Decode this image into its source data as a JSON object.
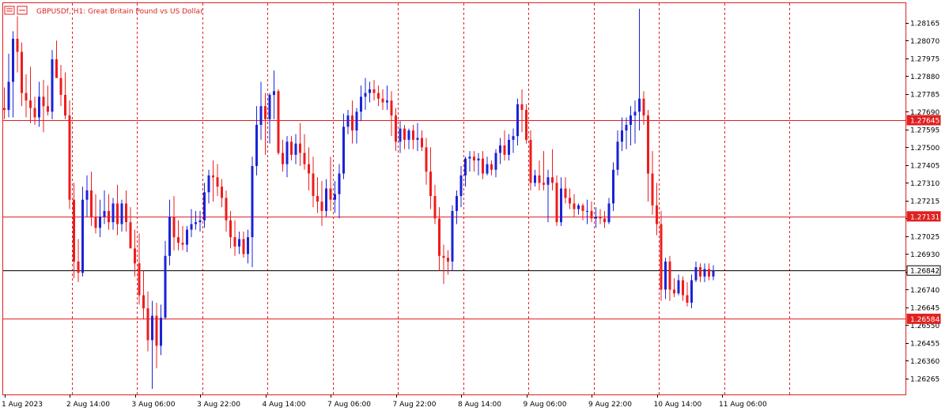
{
  "header": {
    "symbol_text": "GBPUSDf, H1:  Great Britain Pound vs US Dollar"
  },
  "colors": {
    "frame": "#e02020",
    "grid": "#e02020",
    "bull": "#1a23d6",
    "bear": "#ee1c1c",
    "hline": "#e02020",
    "current_line": "#000000",
    "axis_text": "#000000",
    "background": "#ffffff"
  },
  "chart_data": {
    "type": "candlestick",
    "symbol": "GBPUSDf",
    "timeframe": "H1",
    "ylim": [
      1.2618,
      1.2827
    ],
    "y_ticks": [
      "1.28165",
      "1.28070",
      "1.27975",
      "1.27880",
      "1.27785",
      "1.27690",
      "1.27595",
      "1.27500",
      "1.27405",
      "1.27310",
      "1.27215",
      "1.27120",
      "1.27025",
      "1.26930",
      "1.26835",
      "1.26740",
      "1.26645",
      "1.26550",
      "1.26455",
      "1.26360",
      "1.26265"
    ],
    "x_labels": [
      {
        "label": "1 Aug 2023",
        "bar": 0
      },
      {
        "label": "2 Aug 14:00",
        "bar": 15
      },
      {
        "label": "3 Aug 06:00",
        "bar": 30
      },
      {
        "label": "3 Aug 22:00",
        "bar": 45
      },
      {
        "label": "4 Aug 14:00",
        "bar": 60
      },
      {
        "label": "7 Aug 06:00",
        "bar": 75
      },
      {
        "label": "7 Aug 22:00",
        "bar": 90
      },
      {
        "label": "8 Aug 14:00",
        "bar": 105
      },
      {
        "label": "9 Aug 06:00",
        "bar": 120
      },
      {
        "label": "9 Aug 22:00",
        "bar": 135
      },
      {
        "label": "10 Aug 14:00",
        "bar": 150
      },
      {
        "label": "11 Aug 06:00",
        "bar": 165
      }
    ],
    "grid_bars": [
      15,
      30,
      45,
      60,
      75,
      90,
      105,
      120,
      135,
      150,
      165,
      180
    ],
    "horizontal_lines": [
      {
        "price": 1.27645,
        "label": "1.27645",
        "kind": "level"
      },
      {
        "price": 1.27131,
        "label": "1.27131",
        "kind": "level"
      },
      {
        "price": 1.26842,
        "label": "1.26842",
        "kind": "current"
      },
      {
        "price": 1.26584,
        "label": "1.26584",
        "kind": "level"
      }
    ],
    "candles": [
      {
        "o": 1.2771,
        "h": 1.2782,
        "l": 1.2765,
        "c": 1.277
      },
      {
        "o": 1.277,
        "h": 1.28,
        "l": 1.2766,
        "c": 1.2785
      },
      {
        "o": 1.2785,
        "h": 1.2812,
        "l": 1.2766,
        "c": 1.2808
      },
      {
        "o": 1.2808,
        "h": 1.282,
        "l": 1.279,
        "c": 1.2801
      },
      {
        "o": 1.2801,
        "h": 1.2806,
        "l": 1.2772,
        "c": 1.2779
      },
      {
        "o": 1.2779,
        "h": 1.2789,
        "l": 1.2766,
        "c": 1.2775
      },
      {
        "o": 1.2775,
        "h": 1.2793,
        "l": 1.2763,
        "c": 1.2771
      },
      {
        "o": 1.2771,
        "h": 1.2777,
        "l": 1.2762,
        "c": 1.2766
      },
      {
        "o": 1.2766,
        "h": 1.2785,
        "l": 1.2761,
        "c": 1.2777
      },
      {
        "o": 1.2777,
        "h": 1.2786,
        "l": 1.2758,
        "c": 1.2772
      },
      {
        "o": 1.2772,
        "h": 1.2783,
        "l": 1.2767,
        "c": 1.2769
      },
      {
        "o": 1.2769,
        "h": 1.2802,
        "l": 1.2765,
        "c": 1.2797
      },
      {
        "o": 1.2797,
        "h": 1.2807,
        "l": 1.2788,
        "c": 1.2787
      },
      {
        "o": 1.2787,
        "h": 1.2794,
        "l": 1.2772,
        "c": 1.2778
      },
      {
        "o": 1.2778,
        "h": 1.279,
        "l": 1.2765,
        "c": 1.2767
      },
      {
        "o": 1.2767,
        "h": 1.2775,
        "l": 1.2717,
        "c": 1.2722
      },
      {
        "o": 1.2722,
        "h": 1.2731,
        "l": 1.268,
        "c": 1.2689
      },
      {
        "o": 1.2689,
        "h": 1.2701,
        "l": 1.2678,
        "c": 1.2683
      },
      {
        "o": 1.2683,
        "h": 1.2729,
        "l": 1.2681,
        "c": 1.2722
      },
      {
        "o": 1.2722,
        "h": 1.2735,
        "l": 1.2713,
        "c": 1.2727
      },
      {
        "o": 1.2727,
        "h": 1.2737,
        "l": 1.2708,
        "c": 1.2713
      },
      {
        "o": 1.2713,
        "h": 1.2725,
        "l": 1.2704,
        "c": 1.2707
      },
      {
        "o": 1.2707,
        "h": 1.2722,
        "l": 1.2702,
        "c": 1.2713
      },
      {
        "o": 1.2713,
        "h": 1.2727,
        "l": 1.2709,
        "c": 1.2716
      },
      {
        "o": 1.2716,
        "h": 1.2725,
        "l": 1.2706,
        "c": 1.271
      },
      {
        "o": 1.271,
        "h": 1.2723,
        "l": 1.2706,
        "c": 1.272
      },
      {
        "o": 1.272,
        "h": 1.273,
        "l": 1.2703,
        "c": 1.2709
      },
      {
        "o": 1.2709,
        "h": 1.2722,
        "l": 1.2705,
        "c": 1.272
      },
      {
        "o": 1.272,
        "h": 1.2727,
        "l": 1.2705,
        "c": 1.271
      },
      {
        "o": 1.271,
        "h": 1.2718,
        "l": 1.2697,
        "c": 1.2696
      },
      {
        "o": 1.2696,
        "h": 1.2706,
        "l": 1.2681,
        "c": 1.2688
      },
      {
        "o": 1.2688,
        "h": 1.2704,
        "l": 1.2666,
        "c": 1.2671
      },
      {
        "o": 1.2671,
        "h": 1.2684,
        "l": 1.2658,
        "c": 1.2664
      },
      {
        "o": 1.2664,
        "h": 1.2673,
        "l": 1.2641,
        "c": 1.2647
      },
      {
        "o": 1.2647,
        "h": 1.2668,
        "l": 1.2621,
        "c": 1.266
      },
      {
        "o": 1.266,
        "h": 1.2667,
        "l": 1.2632,
        "c": 1.2644
      },
      {
        "o": 1.2644,
        "h": 1.2666,
        "l": 1.2639,
        "c": 1.2659
      },
      {
        "o": 1.2659,
        "h": 1.27,
        "l": 1.2658,
        "c": 1.2692
      },
      {
        "o": 1.2692,
        "h": 1.2722,
        "l": 1.2687,
        "c": 1.2713
      },
      {
        "o": 1.2713,
        "h": 1.2724,
        "l": 1.2695,
        "c": 1.2702
      },
      {
        "o": 1.2702,
        "h": 1.2711,
        "l": 1.2695,
        "c": 1.2699
      },
      {
        "o": 1.2699,
        "h": 1.2708,
        "l": 1.2695,
        "c": 1.2698
      },
      {
        "o": 1.2698,
        "h": 1.2708,
        "l": 1.2694,
        "c": 1.2706
      },
      {
        "o": 1.2706,
        "h": 1.2717,
        "l": 1.2702,
        "c": 1.2709
      },
      {
        "o": 1.2709,
        "h": 1.2716,
        "l": 1.2706,
        "c": 1.271
      },
      {
        "o": 1.271,
        "h": 1.2716,
        "l": 1.2705,
        "c": 1.2711
      },
      {
        "o": 1.2711,
        "h": 1.2731,
        "l": 1.2707,
        "c": 1.2726
      },
      {
        "o": 1.2726,
        "h": 1.2738,
        "l": 1.272,
        "c": 1.2735
      },
      {
        "o": 1.2735,
        "h": 1.2743,
        "l": 1.2721,
        "c": 1.2734
      },
      {
        "o": 1.2734,
        "h": 1.2741,
        "l": 1.2724,
        "c": 1.2729
      },
      {
        "o": 1.2729,
        "h": 1.2733,
        "l": 1.2718,
        "c": 1.2723
      },
      {
        "o": 1.2723,
        "h": 1.2727,
        "l": 1.2705,
        "c": 1.2711
      },
      {
        "o": 1.2711,
        "h": 1.2716,
        "l": 1.2696,
        "c": 1.2702
      },
      {
        "o": 1.2702,
        "h": 1.2711,
        "l": 1.2692,
        "c": 1.2697
      },
      {
        "o": 1.2697,
        "h": 1.2705,
        "l": 1.2693,
        "c": 1.2701
      },
      {
        "o": 1.2701,
        "h": 1.2705,
        "l": 1.2691,
        "c": 1.2693
      },
      {
        "o": 1.2693,
        "h": 1.2706,
        "l": 1.2688,
        "c": 1.2702
      },
      {
        "o": 1.2702,
        "h": 1.2745,
        "l": 1.2686,
        "c": 1.274
      },
      {
        "o": 1.274,
        "h": 1.2772,
        "l": 1.2735,
        "c": 1.2762
      },
      {
        "o": 1.2762,
        "h": 1.2785,
        "l": 1.2754,
        "c": 1.2772
      },
      {
        "o": 1.2772,
        "h": 1.2779,
        "l": 1.2746,
        "c": 1.2765
      },
      {
        "o": 1.2765,
        "h": 1.2779,
        "l": 1.2752,
        "c": 1.2778
      },
      {
        "o": 1.2778,
        "h": 1.2791,
        "l": 1.2765,
        "c": 1.278
      },
      {
        "o": 1.278,
        "h": 1.2781,
        "l": 1.2746,
        "c": 1.2747
      },
      {
        "o": 1.2747,
        "h": 1.2754,
        "l": 1.2737,
        "c": 1.2741
      },
      {
        "o": 1.2741,
        "h": 1.2756,
        "l": 1.2734,
        "c": 1.2753
      },
      {
        "o": 1.2753,
        "h": 1.2756,
        "l": 1.2743,
        "c": 1.2746
      },
      {
        "o": 1.2746,
        "h": 1.2757,
        "l": 1.2741,
        "c": 1.2752
      },
      {
        "o": 1.2752,
        "h": 1.2763,
        "l": 1.274,
        "c": 1.2747
      },
      {
        "o": 1.2747,
        "h": 1.2757,
        "l": 1.2738,
        "c": 1.2741
      },
      {
        "o": 1.2741,
        "h": 1.275,
        "l": 1.2727,
        "c": 1.2736
      },
      {
        "o": 1.2736,
        "h": 1.2745,
        "l": 1.2718,
        "c": 1.2724
      },
      {
        "o": 1.2724,
        "h": 1.2734,
        "l": 1.2715,
        "c": 1.2721
      },
      {
        "o": 1.2721,
        "h": 1.2732,
        "l": 1.2708,
        "c": 1.2716
      },
      {
        "o": 1.2716,
        "h": 1.2733,
        "l": 1.2713,
        "c": 1.2728
      },
      {
        "o": 1.2728,
        "h": 1.2745,
        "l": 1.2716,
        "c": 1.2722
      },
      {
        "o": 1.2722,
        "h": 1.2732,
        "l": 1.2715,
        "c": 1.2725
      },
      {
        "o": 1.2725,
        "h": 1.2741,
        "l": 1.2712,
        "c": 1.2736
      },
      {
        "o": 1.2736,
        "h": 1.2768,
        "l": 1.2733,
        "c": 1.2761
      },
      {
        "o": 1.2761,
        "h": 1.277,
        "l": 1.2757,
        "c": 1.2767
      },
      {
        "o": 1.2767,
        "h": 1.2775,
        "l": 1.2752,
        "c": 1.2759
      },
      {
        "o": 1.2759,
        "h": 1.2771,
        "l": 1.2752,
        "c": 1.2769
      },
      {
        "o": 1.2769,
        "h": 1.2783,
        "l": 1.2764,
        "c": 1.2777
      },
      {
        "o": 1.2777,
        "h": 1.2787,
        "l": 1.277,
        "c": 1.2779
      },
      {
        "o": 1.2779,
        "h": 1.2785,
        "l": 1.2774,
        "c": 1.2781
      },
      {
        "o": 1.2781,
        "h": 1.2786,
        "l": 1.2775,
        "c": 1.2779
      },
      {
        "o": 1.2779,
        "h": 1.2783,
        "l": 1.2772,
        "c": 1.2776
      },
      {
        "o": 1.2776,
        "h": 1.2781,
        "l": 1.277,
        "c": 1.2774
      },
      {
        "o": 1.2774,
        "h": 1.2783,
        "l": 1.277,
        "c": 1.2775
      },
      {
        "o": 1.2775,
        "h": 1.278,
        "l": 1.2756,
        "c": 1.2767
      },
      {
        "o": 1.2767,
        "h": 1.2771,
        "l": 1.2748,
        "c": 1.2753
      },
      {
        "o": 1.2753,
        "h": 1.2764,
        "l": 1.2747,
        "c": 1.276
      },
      {
        "o": 1.276,
        "h": 1.2762,
        "l": 1.2749,
        "c": 1.2754
      },
      {
        "o": 1.2754,
        "h": 1.276,
        "l": 1.2749,
        "c": 1.2759
      },
      {
        "o": 1.2759,
        "h": 1.2762,
        "l": 1.2749,
        "c": 1.2754
      },
      {
        "o": 1.2754,
        "h": 1.2763,
        "l": 1.2748,
        "c": 1.2755
      },
      {
        "o": 1.2755,
        "h": 1.2759,
        "l": 1.2748,
        "c": 1.275
      },
      {
        "o": 1.275,
        "h": 1.2755,
        "l": 1.273,
        "c": 1.2737
      },
      {
        "o": 1.2737,
        "h": 1.275,
        "l": 1.2717,
        "c": 1.2724
      },
      {
        "o": 1.2724,
        "h": 1.273,
        "l": 1.2709,
        "c": 1.2712
      },
      {
        "o": 1.2712,
        "h": 1.2718,
        "l": 1.2684,
        "c": 1.2692
      },
      {
        "o": 1.2692,
        "h": 1.2698,
        "l": 1.2677,
        "c": 1.2691
      },
      {
        "o": 1.2691,
        "h": 1.2695,
        "l": 1.2682,
        "c": 1.2689
      },
      {
        "o": 1.2689,
        "h": 1.2719,
        "l": 1.2684,
        "c": 1.2716
      },
      {
        "o": 1.2716,
        "h": 1.2727,
        "l": 1.2709,
        "c": 1.2724
      },
      {
        "o": 1.2724,
        "h": 1.274,
        "l": 1.2718,
        "c": 1.2735
      },
      {
        "o": 1.2735,
        "h": 1.2745,
        "l": 1.2729,
        "c": 1.2744
      },
      {
        "o": 1.2744,
        "h": 1.2748,
        "l": 1.2737,
        "c": 1.2745
      },
      {
        "o": 1.2745,
        "h": 1.2748,
        "l": 1.2737,
        "c": 1.2743
      },
      {
        "o": 1.2743,
        "h": 1.2747,
        "l": 1.2735,
        "c": 1.2744
      },
      {
        "o": 1.2744,
        "h": 1.2748,
        "l": 1.2733,
        "c": 1.2736
      },
      {
        "o": 1.2736,
        "h": 1.2745,
        "l": 1.2735,
        "c": 1.2741
      },
      {
        "o": 1.2741,
        "h": 1.2743,
        "l": 1.2735,
        "c": 1.2738
      },
      {
        "o": 1.2738,
        "h": 1.2749,
        "l": 1.2734,
        "c": 1.2747
      },
      {
        "o": 1.2747,
        "h": 1.2755,
        "l": 1.2741,
        "c": 1.2751
      },
      {
        "o": 1.2751,
        "h": 1.2759,
        "l": 1.2743,
        "c": 1.2746
      },
      {
        "o": 1.2746,
        "h": 1.2757,
        "l": 1.2743,
        "c": 1.2754
      },
      {
        "o": 1.2754,
        "h": 1.276,
        "l": 1.2747,
        "c": 1.2756
      },
      {
        "o": 1.2756,
        "h": 1.2776,
        "l": 1.2751,
        "c": 1.2773
      },
      {
        "o": 1.2773,
        "h": 1.2781,
        "l": 1.2758,
        "c": 1.277
      },
      {
        "o": 1.277,
        "h": 1.2773,
        "l": 1.2752,
        "c": 1.2754
      },
      {
        "o": 1.2754,
        "h": 1.2759,
        "l": 1.2727,
        "c": 1.2731
      },
      {
        "o": 1.2731,
        "h": 1.2738,
        "l": 1.2729,
        "c": 1.2735
      },
      {
        "o": 1.2735,
        "h": 1.2743,
        "l": 1.2727,
        "c": 1.2731
      },
      {
        "o": 1.2731,
        "h": 1.2748,
        "l": 1.2727,
        "c": 1.273
      },
      {
        "o": 1.273,
        "h": 1.2738,
        "l": 1.271,
        "c": 1.2734
      },
      {
        "o": 1.2734,
        "h": 1.2749,
        "l": 1.2727,
        "c": 1.2731
      },
      {
        "o": 1.2731,
        "h": 1.2735,
        "l": 1.2708,
        "c": 1.271
      },
      {
        "o": 1.271,
        "h": 1.2734,
        "l": 1.2708,
        "c": 1.2728
      },
      {
        "o": 1.2728,
        "h": 1.2734,
        "l": 1.272,
        "c": 1.2723
      },
      {
        "o": 1.2723,
        "h": 1.2728,
        "l": 1.2717,
        "c": 1.272
      },
      {
        "o": 1.272,
        "h": 1.2725,
        "l": 1.2713,
        "c": 1.2717
      },
      {
        "o": 1.2717,
        "h": 1.272,
        "l": 1.2714,
        "c": 1.2719
      },
      {
        "o": 1.2719,
        "h": 1.272,
        "l": 1.2711,
        "c": 1.2716
      },
      {
        "o": 1.2716,
        "h": 1.2722,
        "l": 1.2709,
        "c": 1.2716
      },
      {
        "o": 1.2716,
        "h": 1.2721,
        "l": 1.271,
        "c": 1.2712
      },
      {
        "o": 1.2712,
        "h": 1.2718,
        "l": 1.2707,
        "c": 1.2713
      },
      {
        "o": 1.2713,
        "h": 1.2717,
        "l": 1.2709,
        "c": 1.2712
      },
      {
        "o": 1.2712,
        "h": 1.2716,
        "l": 1.2707,
        "c": 1.271
      },
      {
        "o": 1.271,
        "h": 1.2723,
        "l": 1.2709,
        "c": 1.272
      },
      {
        "o": 1.272,
        "h": 1.2742,
        "l": 1.2716,
        "c": 1.2738
      },
      {
        "o": 1.2738,
        "h": 1.2759,
        "l": 1.2735,
        "c": 1.2753
      },
      {
        "o": 1.2753,
        "h": 1.2766,
        "l": 1.2748,
        "c": 1.2759
      },
      {
        "o": 1.2759,
        "h": 1.2766,
        "l": 1.2749,
        "c": 1.2762
      },
      {
        "o": 1.2762,
        "h": 1.2772,
        "l": 1.2751,
        "c": 1.2767
      },
      {
        "o": 1.2767,
        "h": 1.2775,
        "l": 1.2752,
        "c": 1.2769
      },
      {
        "o": 1.2769,
        "h": 1.2824,
        "l": 1.2759,
        "c": 1.2776
      },
      {
        "o": 1.2776,
        "h": 1.278,
        "l": 1.2762,
        "c": 1.2767
      },
      {
        "o": 1.2767,
        "h": 1.277,
        "l": 1.2721,
        "c": 1.2736
      },
      {
        "o": 1.2736,
        "h": 1.2748,
        "l": 1.2714,
        "c": 1.2719
      },
      {
        "o": 1.2719,
        "h": 1.2731,
        "l": 1.2703,
        "c": 1.2709
      },
      {
        "o": 1.2709,
        "h": 1.2716,
        "l": 1.2668,
        "c": 1.2674
      },
      {
        "o": 1.2674,
        "h": 1.2691,
        "l": 1.2669,
        "c": 1.2689
      },
      {
        "o": 1.2689,
        "h": 1.2692,
        "l": 1.2668,
        "c": 1.2674
      },
      {
        "o": 1.2674,
        "h": 1.268,
        "l": 1.267,
        "c": 1.2672
      },
      {
        "o": 1.2672,
        "h": 1.2682,
        "l": 1.2671,
        "c": 1.2679
      },
      {
        "o": 1.2679,
        "h": 1.2681,
        "l": 1.2668,
        "c": 1.2671
      },
      {
        "o": 1.2671,
        "h": 1.2678,
        "l": 1.2665,
        "c": 1.2667
      },
      {
        "o": 1.2667,
        "h": 1.2682,
        "l": 1.2664,
        "c": 1.2679
      },
      {
        "o": 1.2679,
        "h": 1.2689,
        "l": 1.2678,
        "c": 1.2686
      },
      {
        "o": 1.2686,
        "h": 1.2688,
        "l": 1.2678,
        "c": 1.2681
      },
      {
        "o": 1.2681,
        "h": 1.2688,
        "l": 1.2678,
        "c": 1.2685
      },
      {
        "o": 1.2685,
        "h": 1.2688,
        "l": 1.2679,
        "c": 1.2681
      },
      {
        "o": 1.2681,
        "h": 1.2687,
        "l": 1.2679,
        "c": 1.2684
      }
    ]
  }
}
